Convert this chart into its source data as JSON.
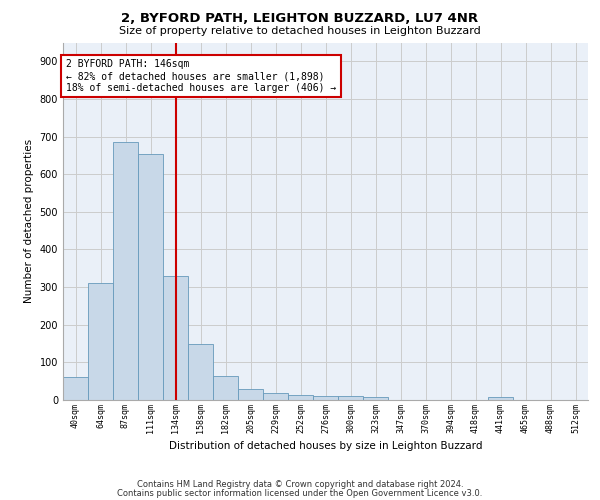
{
  "title1": "2, BYFORD PATH, LEIGHTON BUZZARD, LU7 4NR",
  "title2": "Size of property relative to detached houses in Leighton Buzzard",
  "xlabel": "Distribution of detached houses by size in Leighton Buzzard",
  "ylabel": "Number of detached properties",
  "bin_labels": [
    "40sqm",
    "64sqm",
    "87sqm",
    "111sqm",
    "134sqm",
    "158sqm",
    "182sqm",
    "205sqm",
    "229sqm",
    "252sqm",
    "276sqm",
    "300sqm",
    "323sqm",
    "347sqm",
    "370sqm",
    "394sqm",
    "418sqm",
    "441sqm",
    "465sqm",
    "488sqm",
    "512sqm"
  ],
  "bar_values": [
    62,
    310,
    685,
    655,
    330,
    150,
    65,
    30,
    18,
    12,
    10,
    10,
    7,
    0,
    0,
    0,
    0,
    8,
    0,
    0,
    0
  ],
  "bar_color": "#c8d8e8",
  "bar_edge_color": "#6699bb",
  "grid_color": "#cccccc",
  "bg_color": "#eaf0f8",
  "annotation_line_color": "#cc0000",
  "annotation_text_line1": "2 BYFORD PATH: 146sqm",
  "annotation_text_line2": "← 82% of detached houses are smaller (1,898)",
  "annotation_text_line3": "18% of semi-detached houses are larger (406) →",
  "ylim": [
    0,
    950
  ],
  "yticks": [
    0,
    100,
    200,
    300,
    400,
    500,
    600,
    700,
    800,
    900
  ],
  "footer1": "Contains HM Land Registry data © Crown copyright and database right 2024.",
  "footer2": "Contains public sector information licensed under the Open Government Licence v3.0."
}
